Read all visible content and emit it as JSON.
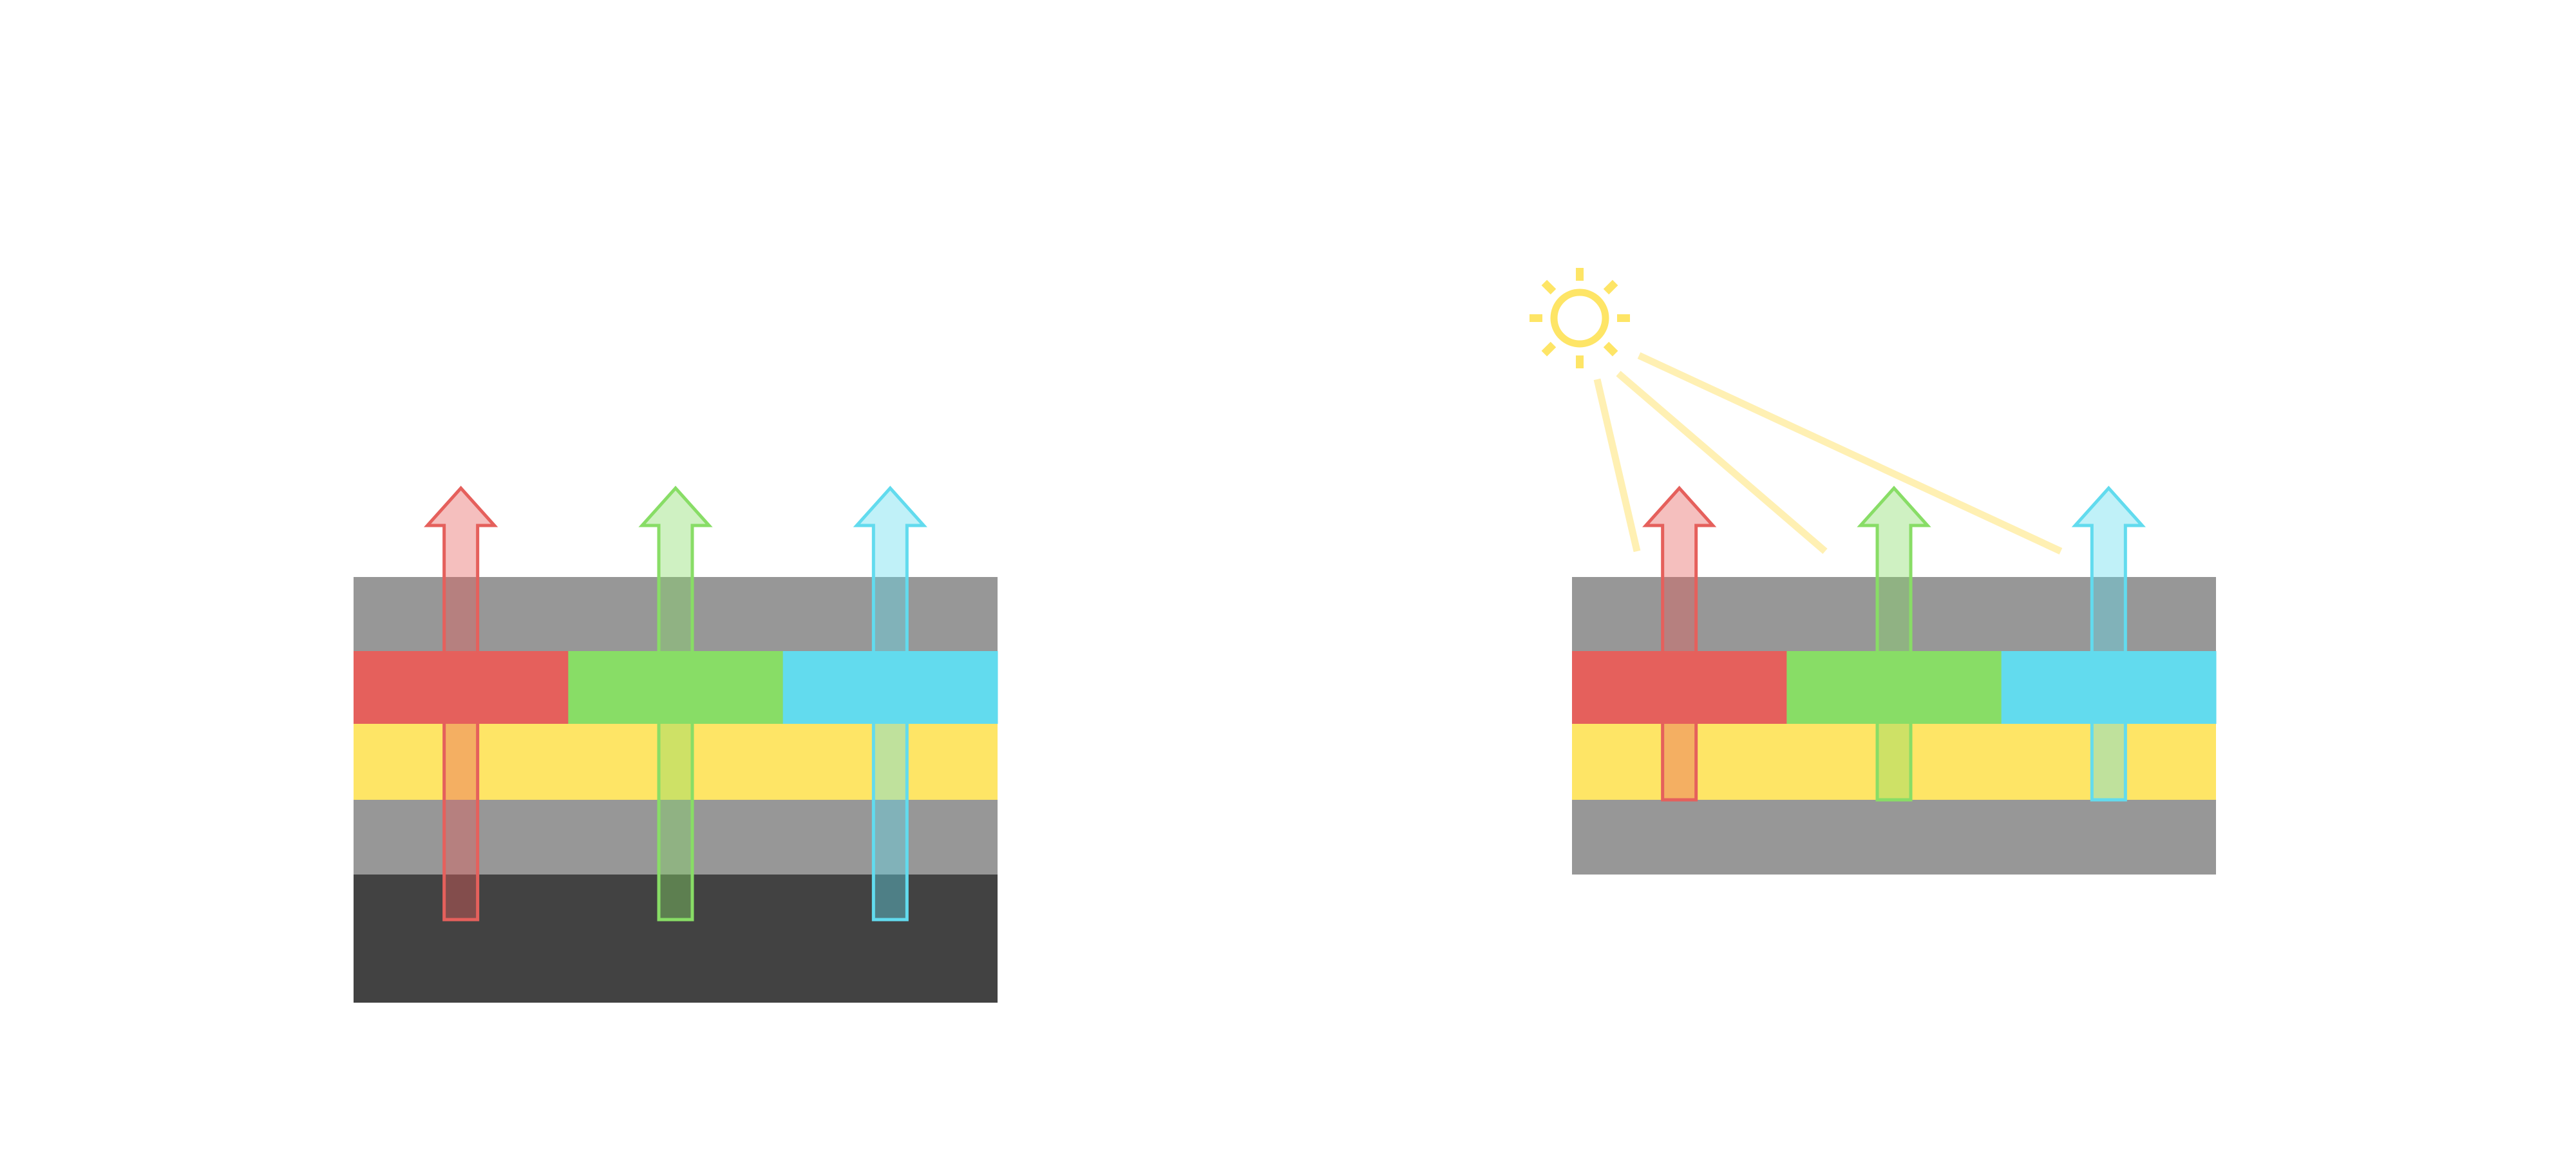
{
  "colors": {
    "background": "#ffffff",
    "layer_gray": "#979797",
    "layer_dark": "#424242",
    "layer_yellow": "#fee566",
    "pixel_red": "#e5605c",
    "pixel_green": "#88dd66",
    "pixel_cyan": "#62dbee",
    "sun": "#fee566",
    "sun_beam": "#fff0b3"
  },
  "panels": [
    {
      "name": "left-stack",
      "layers": [
        "gray",
        "red-green-cyan",
        "yellow",
        "gray",
        "dark"
      ],
      "arrows": [
        "red",
        "green",
        "cyan"
      ]
    },
    {
      "name": "right-stack",
      "layers": [
        "gray",
        "red-green-cyan",
        "yellow",
        "gray"
      ],
      "arrows": [
        "red",
        "green",
        "cyan"
      ],
      "light_source": "sun-icon",
      "beam_count": 3
    }
  ]
}
